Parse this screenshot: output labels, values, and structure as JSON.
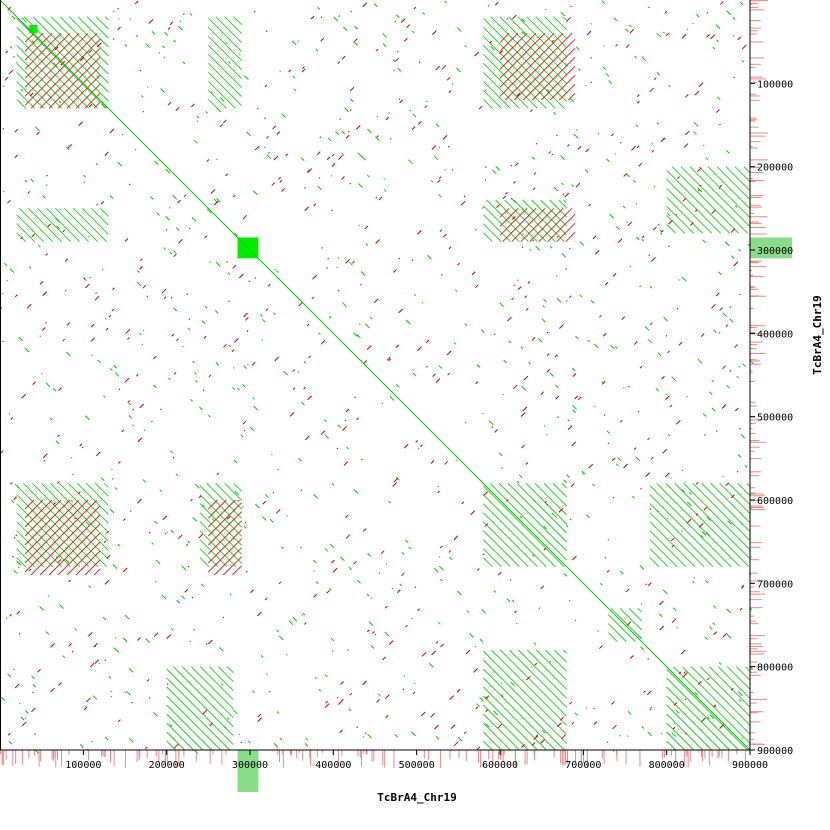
{
  "chart_data": {
    "type": "scatter",
    "title": "",
    "xlabel": "TcBrA4_Chr19",
    "ylabel": "TcBrA4_Chr19",
    "xlim": [
      0,
      900000
    ],
    "ylim": [
      0,
      900000
    ],
    "y_inverted": true,
    "x_ticks": [
      100000,
      200000,
      300000,
      400000,
      500000,
      600000,
      700000,
      800000,
      900000
    ],
    "y_ticks": [
      100000,
      200000,
      300000,
      400000,
      500000,
      600000,
      700000,
      800000,
      900000
    ],
    "x_tick_labels": [
      "100000",
      "200000",
      "300000",
      "400000",
      "500000",
      "600000",
      "700000",
      "800000",
      "900000"
    ],
    "y_tick_labels": [
      "100000",
      "200000",
      "300000",
      "400000",
      "500000",
      "600000",
      "700000",
      "800000",
      "900000"
    ],
    "grid": false,
    "legend": "none",
    "series": [
      {
        "name": "",
        "color": "#00cc00",
        "kind": "diagonal",
        "segments": [
          [
            0,
            0,
            900000,
            900000
          ]
        ]
      },
      {
        "name": "",
        "color": "#00cc00",
        "kind": "hatched-blocks",
        "blocks": [
          [
            20000,
            20000,
            130000,
            130000
          ],
          [
            250000,
            20000,
            290000,
            130000
          ],
          [
            20000,
            250000,
            130000,
            290000
          ],
          [
            580000,
            20000,
            680000,
            130000
          ],
          [
            20000,
            580000,
            130000,
            680000
          ],
          [
            580000,
            580000,
            680000,
            680000
          ],
          [
            580000,
            240000,
            680000,
            290000
          ],
          [
            240000,
            580000,
            290000,
            680000
          ],
          [
            730000,
            730000,
            770000,
            770000
          ],
          [
            800000,
            800000,
            900000,
            900000
          ],
          [
            580000,
            780000,
            680000,
            900000
          ],
          [
            780000,
            580000,
            900000,
            680000
          ],
          [
            800000,
            200000,
            900000,
            280000
          ],
          [
            200000,
            800000,
            280000,
            900000
          ]
        ]
      },
      {
        "name": "",
        "color": "#dd0000",
        "kind": "hatched-blocks",
        "blocks": [
          [
            30000,
            40000,
            120000,
            130000
          ],
          [
            600000,
            40000,
            690000,
            120000
          ],
          [
            30000,
            600000,
            120000,
            690000
          ],
          [
            250000,
            600000,
            290000,
            690000
          ],
          [
            600000,
            250000,
            690000,
            290000
          ]
        ]
      },
      {
        "name": "",
        "color": "#00ee00",
        "kind": "filled-squares",
        "blocks": [
          [
            285000,
            285000,
            310000,
            310000
          ],
          [
            35000,
            30000,
            45000,
            40000
          ]
        ]
      },
      {
        "name": "",
        "color": "#00aa00",
        "kind": "margin-bars",
        "blocks": [
          [
            285000,
            0,
            310000,
            50000
          ]
        ]
      }
    ]
  }
}
